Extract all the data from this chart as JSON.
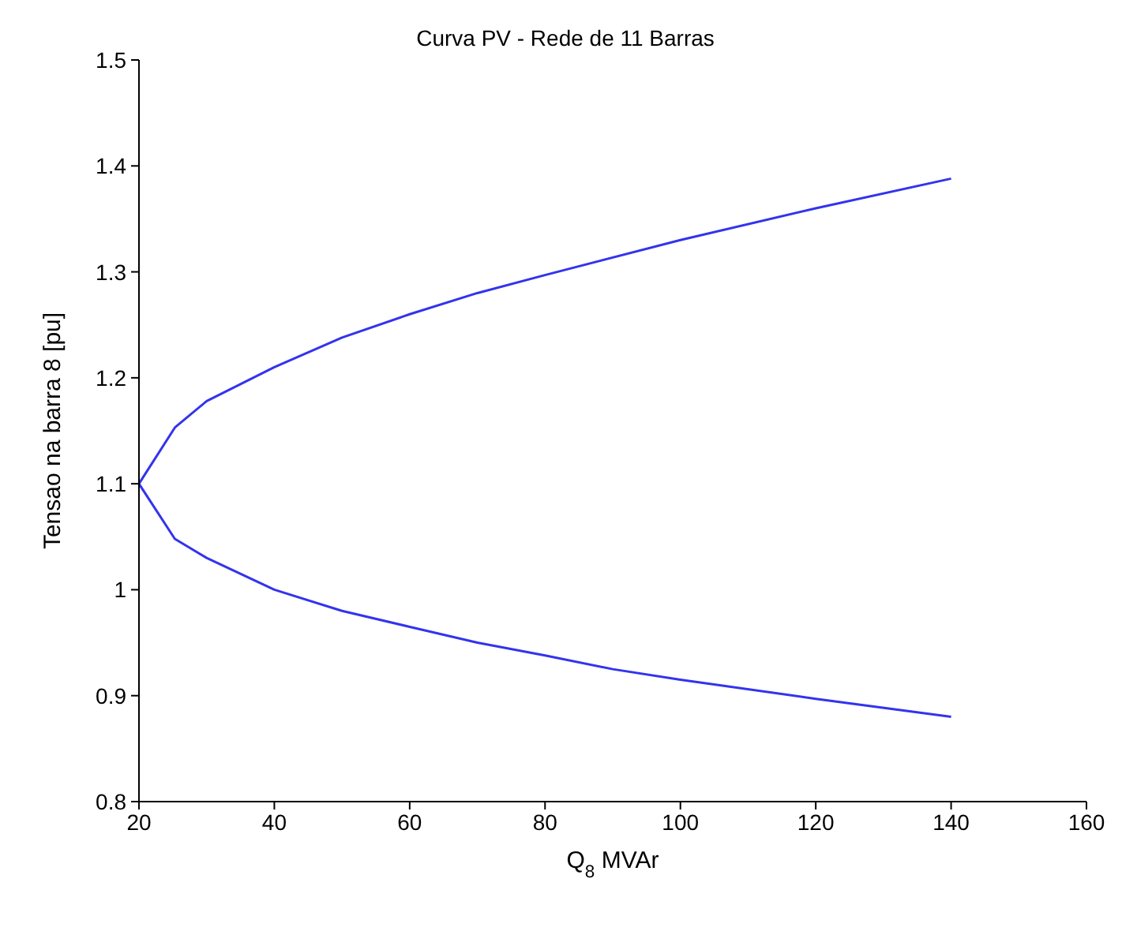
{
  "chart_data": {
    "type": "line",
    "title": "Curva PV - Rede de 11 Barras",
    "xlabel": "Q$_{8}$ MVAr",
    "ylabel": "Tensao na barra 8 [pu]",
    "series": [
      {
        "color": "#3333ee",
        "x": [
          20,
          25.3,
          30,
          40,
          50,
          60,
          70,
          80,
          100,
          120,
          140
        ],
        "values": [
          1.1,
          1.153,
          1.178,
          1.21,
          1.238,
          1.26,
          1.28,
          1.297,
          1.33,
          1.36,
          1.388
        ]
      },
      {
        "color": "#3333ee",
        "x": [
          20,
          25.3,
          30,
          40,
          50,
          60,
          70,
          80,
          90,
          100,
          120,
          140
        ],
        "values": [
          1.1,
          1.048,
          1.03,
          1.0,
          0.98,
          0.965,
          0.95,
          0.938,
          0.925,
          0.915,
          0.897,
          0.88
        ]
      }
    ],
    "xlim": [
      20,
      160
    ],
    "xticks": [
      20,
      40,
      60,
      80,
      100,
      120,
      140,
      160
    ],
    "ylim": [
      0.8,
      1.5
    ],
    "yticks": [
      0.8,
      0.9,
      1,
      1.1,
      1.2,
      1.3,
      1.4,
      1.5
    ],
    "grid": false,
    "legend": false,
    "marker": "none",
    "line_style": "solid"
  }
}
